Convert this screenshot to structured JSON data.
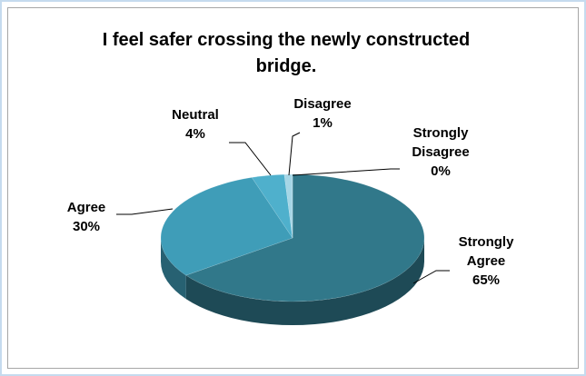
{
  "chart_data": {
    "type": "pie3d",
    "title": "I feel safer crossing the newly constructed bridge.",
    "categories": [
      "Strongly Agree",
      "Agree",
      "Neutral",
      "Disagree",
      "Strongly Disagree"
    ],
    "values": [
      65,
      30,
      4,
      1,
      0
    ],
    "value_labels": [
      "65%",
      "30%",
      "4%",
      "1%",
      "0%"
    ],
    "colors": [
      "#31788a",
      "#3f9db8",
      "#4fb0cc",
      "#a6d6e6",
      "#cde9f2"
    ]
  }
}
